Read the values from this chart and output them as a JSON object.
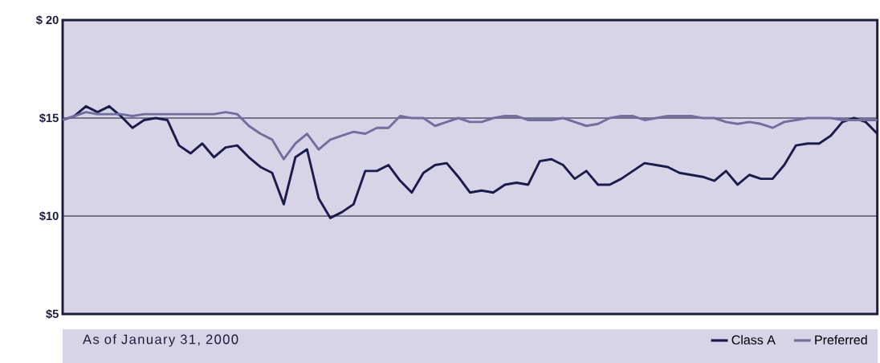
{
  "chart_data": {
    "type": "line",
    "annotations": [
      "As of January 31, 2000"
    ],
    "categories": [
      null,
      null,
      null,
      null,
      null,
      null,
      null,
      null,
      null,
      null,
      null,
      null,
      null,
      null,
      null,
      null,
      null,
      null,
      null,
      null,
      null,
      null,
      null,
      null,
      null,
      null,
      null,
      null,
      null,
      null,
      null,
      null,
      null,
      null,
      null,
      null,
      null,
      null,
      null,
      null,
      null,
      null,
      null,
      null,
      null,
      null,
      null,
      null,
      null,
      null,
      null,
      null,
      null,
      null,
      null,
      null,
      null,
      null,
      null,
      null,
      null,
      null,
      null,
      null,
      null,
      null,
      null,
      null,
      null,
      null,
      null
    ],
    "series": [
      {
        "name": "Class A",
        "color": "#1c1c4c",
        "values": [
          14.9,
          15.1,
          15.6,
          15.3,
          15.6,
          15.1,
          14.5,
          14.9,
          15.0,
          14.9,
          13.6,
          13.2,
          13.7,
          13.0,
          13.5,
          13.6,
          13.0,
          12.5,
          12.2,
          10.6,
          13.0,
          13.4,
          10.9,
          9.9,
          10.2,
          10.6,
          12.3,
          12.3,
          12.6,
          11.8,
          11.2,
          12.2,
          12.6,
          12.7,
          12.0,
          11.2,
          11.3,
          11.2,
          11.6,
          11.7,
          11.6,
          12.8,
          12.9,
          12.6,
          11.9,
          12.3,
          11.6,
          11.6,
          11.9,
          12.3,
          12.7,
          12.6,
          12.5,
          12.2,
          12.1,
          12.0,
          11.8,
          12.3,
          11.6,
          12.1,
          11.9,
          11.9,
          12.6,
          13.6,
          13.7,
          13.7,
          14.1,
          14.8,
          15.0,
          14.8,
          14.2
        ]
      },
      {
        "name": "Preferred",
        "color": "#726e9e",
        "values": [
          14.9,
          15.1,
          15.3,
          15.2,
          15.2,
          15.2,
          15.1,
          15.2,
          15.2,
          15.2,
          15.2,
          15.2,
          15.2,
          15.2,
          15.3,
          15.2,
          14.6,
          14.2,
          13.9,
          12.9,
          13.7,
          14.2,
          13.4,
          13.9,
          14.1,
          14.3,
          14.2,
          14.5,
          14.5,
          15.1,
          15.0,
          15.0,
          14.6,
          14.8,
          15.0,
          14.8,
          14.8,
          15.0,
          15.1,
          15.1,
          14.9,
          14.9,
          14.9,
          15.0,
          14.8,
          14.6,
          14.7,
          15.0,
          15.1,
          15.1,
          14.9,
          15.0,
          15.1,
          15.1,
          15.1,
          15.0,
          15.0,
          14.8,
          14.7,
          14.8,
          14.7,
          14.5,
          14.8,
          14.9,
          15.0,
          15.0,
          15.0,
          14.9,
          14.9,
          14.9,
          14.9
        ]
      }
    ],
    "ylim": [
      5,
      20
    ],
    "yticks": [
      {
        "value": 5,
        "label": "$5"
      },
      {
        "value": 10,
        "label": "$10"
      },
      {
        "value": 15,
        "label": "$15"
      },
      {
        "value": 20,
        "label": "$ 20"
      }
    ],
    "grid": "y",
    "legend": "bottom right",
    "marker": "none",
    "line_style": "solid"
  }
}
